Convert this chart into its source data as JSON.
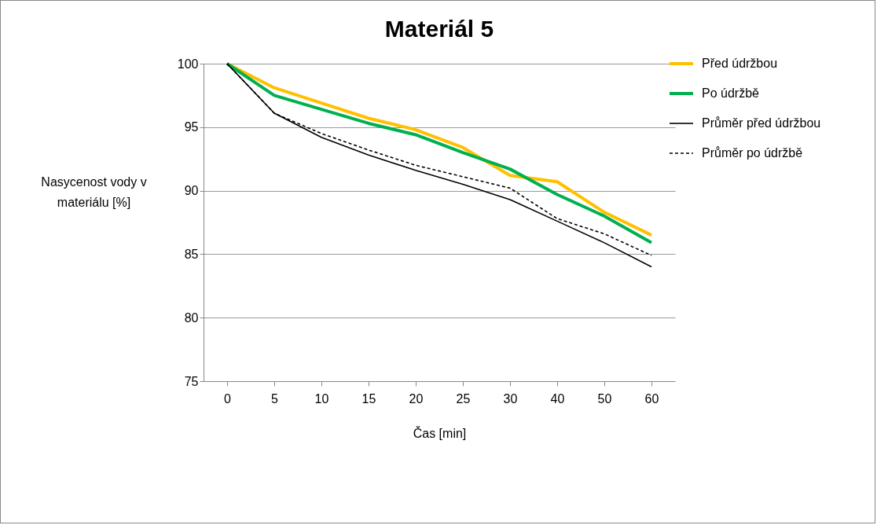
{
  "chart_data": {
    "type": "line",
    "title": "Materiál 5",
    "xlabel": "Čas [min]",
    "ylabel": "Nasycenost vody v materiálu [%]",
    "categories": [
      "0",
      "5",
      "10",
      "15",
      "20",
      "25",
      "30",
      "40",
      "50",
      "60"
    ],
    "series": [
      {
        "name": "Před údržbou",
        "color": "#ffc000",
        "line_style": "solid",
        "values": [
          100,
          98.1,
          96.9,
          95.7,
          94.8,
          93.4,
          91.2,
          90.7,
          88.3,
          86.5
        ]
      },
      {
        "name": "Po údržbě",
        "color": "#00b050",
        "line_style": "solid",
        "values": [
          100,
          97.5,
          96.4,
          95.3,
          94.4,
          93.0,
          91.7,
          89.7,
          88.0,
          85.9
        ]
      },
      {
        "name": "Průměr před údržbou",
        "color": "#000000",
        "line_style": "solid",
        "values": [
          100,
          96.1,
          94.2,
          92.8,
          91.6,
          90.5,
          89.3,
          87.6,
          85.9,
          84.0
        ]
      },
      {
        "name": "Průměr po údržbě",
        "color": "#000000",
        "line_style": "dashed",
        "values": [
          100,
          96.1,
          94.5,
          93.2,
          92.0,
          91.1,
          90.2,
          87.8,
          86.6,
          84.9
        ]
      }
    ],
    "ylim": [
      75,
      100
    ],
    "yticks": [
      75,
      80,
      85,
      90,
      95,
      100
    ],
    "grid": "y",
    "legend": "top right",
    "marker": "none"
  }
}
